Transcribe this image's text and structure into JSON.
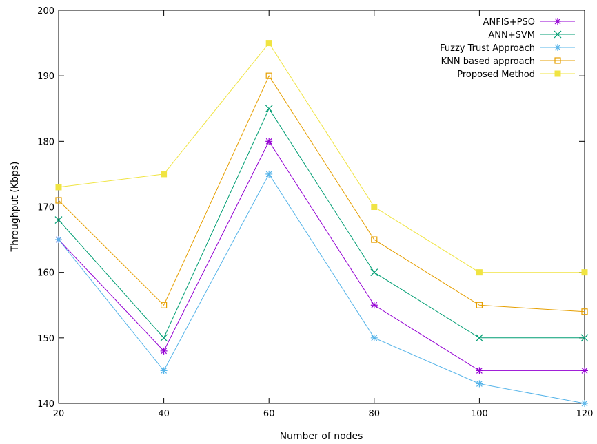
{
  "chart_data": {
    "type": "line",
    "title": "",
    "xlabel": "Number of nodes",
    "ylabel": "Throughput (Kbps)",
    "x": [
      20,
      40,
      60,
      80,
      100,
      120
    ],
    "xlim": [
      20,
      120
    ],
    "ylim": [
      140,
      200
    ],
    "xticks": [
      "20",
      "40",
      "60",
      "80",
      "100",
      "120"
    ],
    "yticks": [
      "140",
      "150",
      "160",
      "170",
      "180",
      "190",
      "200"
    ],
    "grid": false,
    "legend_position": "top-right",
    "series": [
      {
        "name": "ANFIS+PSO",
        "values": [
          165,
          148,
          180,
          155,
          145,
          145
        ],
        "color": "#9400d3",
        "marker": "plus-x"
      },
      {
        "name": "ANN+SVM",
        "values": [
          168,
          150,
          185,
          160,
          150,
          150
        ],
        "color": "#009e73",
        "marker": "x"
      },
      {
        "name": "Fuzzy Trust Approach",
        "values": [
          165,
          145,
          175,
          150,
          143,
          140
        ],
        "color": "#56b4e9",
        "marker": "asterisk"
      },
      {
        "name": "KNN based approach",
        "values": [
          171,
          155,
          190,
          165,
          155,
          154
        ],
        "color": "#e69f00",
        "marker": "open-square"
      },
      {
        "name": "Proposed Method",
        "values": [
          173,
          175,
          195,
          170,
          160,
          160
        ],
        "color": "#f0e442",
        "marker": "filled-square"
      }
    ]
  }
}
